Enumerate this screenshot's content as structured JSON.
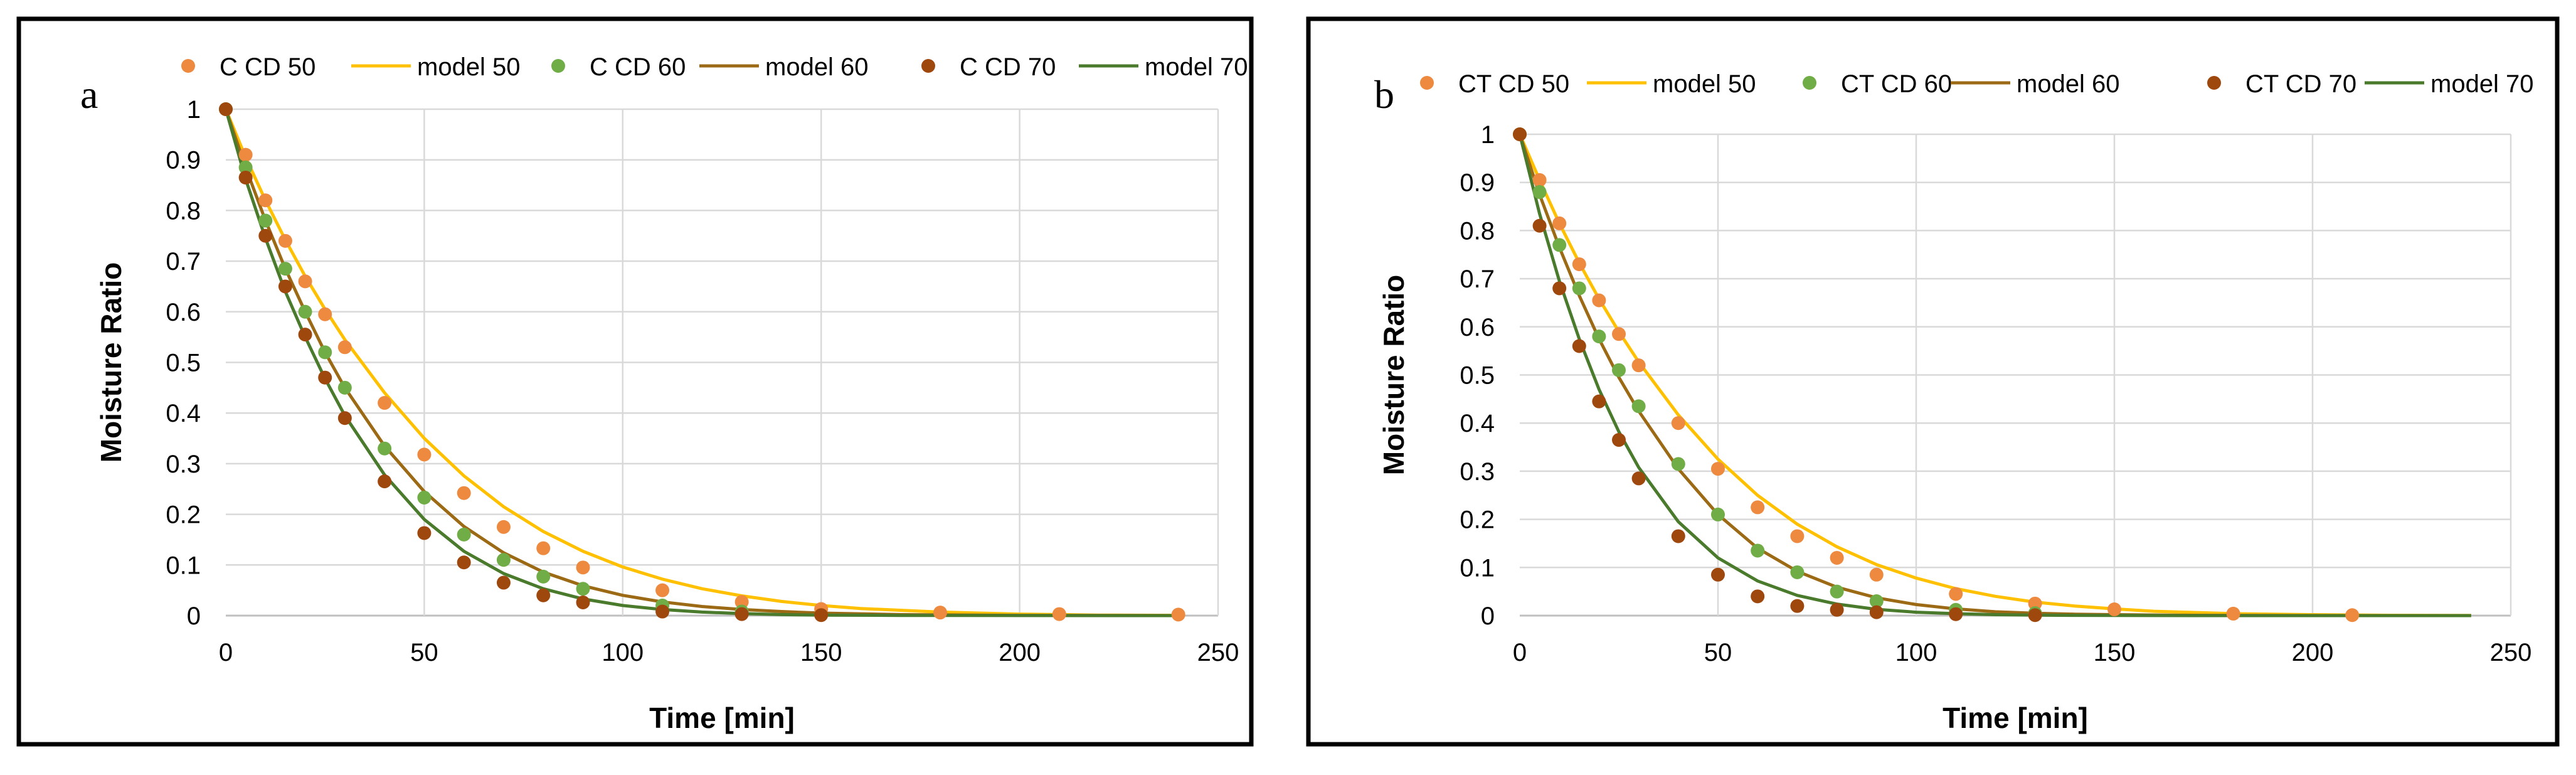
{
  "figure": {
    "colors": {
      "c50": "#ed8a3f",
      "m50": "#ffc000",
      "c60": "#70ad47",
      "m60": "#9c6a14",
      "c70": "#9e480e",
      "m70": "#4a7a2b",
      "grid": "#d9d9d9",
      "frame": "#000000"
    }
  },
  "chart_data": [
    {
      "type": "scatter",
      "panel_label": "a",
      "xlabel": "Time [min]",
      "ylabel": "Moisture Ratio",
      "xlim": [
        0,
        250
      ],
      "ylim": [
        0,
        1
      ],
      "x_ticks": [
        "0",
        "50",
        "100",
        "150",
        "200",
        "250"
      ],
      "y_ticks": [
        "0",
        "0.1",
        "0.2",
        "0.3",
        "0.4",
        "0.5",
        "0.6",
        "0.7",
        "0.8",
        "0.9",
        "1"
      ],
      "legend_position": "top",
      "series": [
        {
          "name": "C CD 50",
          "kind": "markers",
          "color_key": "c50",
          "x": [
            0,
            5,
            10,
            15,
            20,
            25,
            30,
            40,
            50,
            60,
            70,
            80,
            90,
            110,
            130,
            150,
            180,
            210,
            240
          ],
          "y": [
            1,
            0.91,
            0.82,
            0.74,
            0.66,
            0.595,
            0.53,
            0.42,
            0.318,
            0.242,
            0.175,
            0.133,
            0.095,
            0.05,
            0.027,
            0.013,
            0.006,
            0.003,
            0.002
          ]
        },
        {
          "name": "model 50",
          "kind": "line",
          "color_key": "m50",
          "x": [
            0,
            5,
            10,
            15,
            20,
            25,
            30,
            40,
            50,
            60,
            70,
            80,
            90,
            100,
            110,
            120,
            130,
            140,
            150,
            160,
            180,
            200,
            220,
            240
          ],
          "y": [
            1,
            0.905,
            0.82,
            0.742,
            0.67,
            0.605,
            0.545,
            0.44,
            0.35,
            0.276,
            0.215,
            0.166,
            0.127,
            0.096,
            0.072,
            0.053,
            0.039,
            0.028,
            0.02,
            0.014,
            0.007,
            0.003,
            0.001,
            0.0005
          ]
        },
        {
          "name": "C CD 60",
          "kind": "markers",
          "color_key": "c60",
          "x": [
            0,
            5,
            10,
            15,
            20,
            25,
            30,
            40,
            50,
            60,
            70,
            80,
            90,
            110,
            130
          ],
          "y": [
            1,
            0.885,
            0.78,
            0.685,
            0.6,
            0.52,
            0.45,
            0.33,
            0.233,
            0.16,
            0.11,
            0.077,
            0.053,
            0.02,
            0.008
          ]
        },
        {
          "name": "model 60",
          "kind": "line",
          "color_key": "m60",
          "x": [
            0,
            5,
            10,
            15,
            20,
            25,
            30,
            40,
            50,
            60,
            70,
            80,
            90,
            100,
            110,
            120,
            130,
            140,
            150,
            170,
            200,
            240
          ],
          "y": [
            1,
            0.885,
            0.78,
            0.685,
            0.6,
            0.52,
            0.45,
            0.335,
            0.245,
            0.176,
            0.124,
            0.086,
            0.059,
            0.04,
            0.027,
            0.018,
            0.012,
            0.008,
            0.005,
            0.002,
            0.0005,
            0.0001
          ]
        },
        {
          "name": "C CD 70",
          "kind": "markers",
          "color_key": "c70",
          "x": [
            0,
            5,
            10,
            15,
            20,
            25,
            30,
            40,
            50,
            60,
            70,
            80,
            90,
            110,
            130,
            150
          ],
          "y": [
            1,
            0.865,
            0.75,
            0.65,
            0.555,
            0.47,
            0.39,
            0.265,
            0.163,
            0.105,
            0.065,
            0.04,
            0.026,
            0.008,
            0.003,
            0.001
          ]
        },
        {
          "name": "model 70",
          "kind": "line",
          "color_key": "m70",
          "x": [
            0,
            5,
            10,
            15,
            20,
            25,
            30,
            40,
            50,
            60,
            70,
            80,
            90,
            100,
            110,
            120,
            130,
            140,
            150,
            170,
            200,
            240
          ],
          "y": [
            1,
            0.862,
            0.745,
            0.64,
            0.55,
            0.468,
            0.395,
            0.278,
            0.19,
            0.127,
            0.083,
            0.053,
            0.033,
            0.02,
            0.012,
            0.007,
            0.004,
            0.002,
            0.001,
            0.0004,
            0.0001,
            0
          ]
        }
      ]
    },
    {
      "type": "scatter",
      "panel_label": "b",
      "xlabel": "Time [min]",
      "ylabel": "Moisture Ratio",
      "xlim": [
        0,
        250
      ],
      "ylim": [
        0,
        1
      ],
      "x_ticks": [
        "0",
        "50",
        "100",
        "150",
        "200",
        "250"
      ],
      "y_ticks": [
        "0",
        "0.1",
        "0.2",
        "0.3",
        "0.4",
        "0.5",
        "0.6",
        "0.7",
        "0.8",
        "0.9",
        "1"
      ],
      "legend_position": "top",
      "series": [
        {
          "name": "CT CD 50",
          "kind": "markers",
          "color_key": "c50",
          "x": [
            0,
            5,
            10,
            15,
            20,
            25,
            30,
            40,
            50,
            60,
            70,
            80,
            90,
            110,
            130,
            150,
            180,
            210
          ],
          "y": [
            1,
            0.905,
            0.815,
            0.73,
            0.655,
            0.585,
            0.52,
            0.4,
            0.305,
            0.225,
            0.165,
            0.12,
            0.085,
            0.045,
            0.025,
            0.013,
            0.004,
            0.001
          ]
        },
        {
          "name": "model 50",
          "kind": "line",
          "color_key": "m50",
          "x": [
            0,
            5,
            10,
            15,
            20,
            25,
            30,
            40,
            50,
            60,
            70,
            80,
            90,
            100,
            110,
            120,
            130,
            140,
            150,
            160,
            180,
            200,
            220,
            240
          ],
          "y": [
            1,
            0.905,
            0.815,
            0.733,
            0.658,
            0.59,
            0.527,
            0.417,
            0.325,
            0.25,
            0.19,
            0.143,
            0.106,
            0.078,
            0.056,
            0.04,
            0.028,
            0.02,
            0.014,
            0.009,
            0.004,
            0.002,
            0.0007,
            0.0003
          ]
        },
        {
          "name": "CT CD 60",
          "kind": "markers",
          "color_key": "c60",
          "x": [
            0,
            5,
            10,
            15,
            20,
            25,
            30,
            40,
            50,
            60,
            70,
            80,
            90,
            110,
            130
          ],
          "y": [
            1,
            0.88,
            0.77,
            0.68,
            0.58,
            0.51,
            0.435,
            0.315,
            0.21,
            0.135,
            0.09,
            0.05,
            0.03,
            0.012,
            0.005
          ]
        },
        {
          "name": "model 60",
          "kind": "line",
          "color_key": "m60",
          "x": [
            0,
            5,
            10,
            15,
            20,
            25,
            30,
            40,
            50,
            60,
            70,
            80,
            90,
            100,
            110,
            120,
            130,
            140,
            150,
            170,
            200,
            240
          ],
          "y": [
            1,
            0.875,
            0.765,
            0.665,
            0.575,
            0.495,
            0.425,
            0.305,
            0.21,
            0.14,
            0.092,
            0.059,
            0.037,
            0.023,
            0.014,
            0.008,
            0.005,
            0.003,
            0.002,
            0.0006,
            0.0001,
            0
          ]
        },
        {
          "name": "CT CD 70",
          "kind": "markers",
          "color_key": "c70",
          "x": [
            0,
            5,
            10,
            15,
            20,
            25,
            30,
            40,
            50,
            60,
            70,
            80,
            90,
            110,
            130
          ],
          "y": [
            1,
            0.81,
            0.68,
            0.56,
            0.445,
            0.365,
            0.285,
            0.165,
            0.085,
            0.04,
            0.02,
            0.012,
            0.007,
            0.003,
            0.001
          ]
        },
        {
          "name": "model 70",
          "kind": "line",
          "color_key": "m70",
          "x": [
            0,
            5,
            10,
            15,
            20,
            25,
            30,
            40,
            50,
            60,
            70,
            80,
            90,
            100,
            110,
            120,
            130,
            140,
            150,
            170,
            200,
            240
          ],
          "y": [
            1,
            0.835,
            0.695,
            0.575,
            0.47,
            0.382,
            0.308,
            0.195,
            0.12,
            0.072,
            0.042,
            0.024,
            0.013,
            0.007,
            0.004,
            0.002,
            0.001,
            0.0005,
            0.0002,
            0,
            0,
            0
          ]
        }
      ]
    }
  ]
}
